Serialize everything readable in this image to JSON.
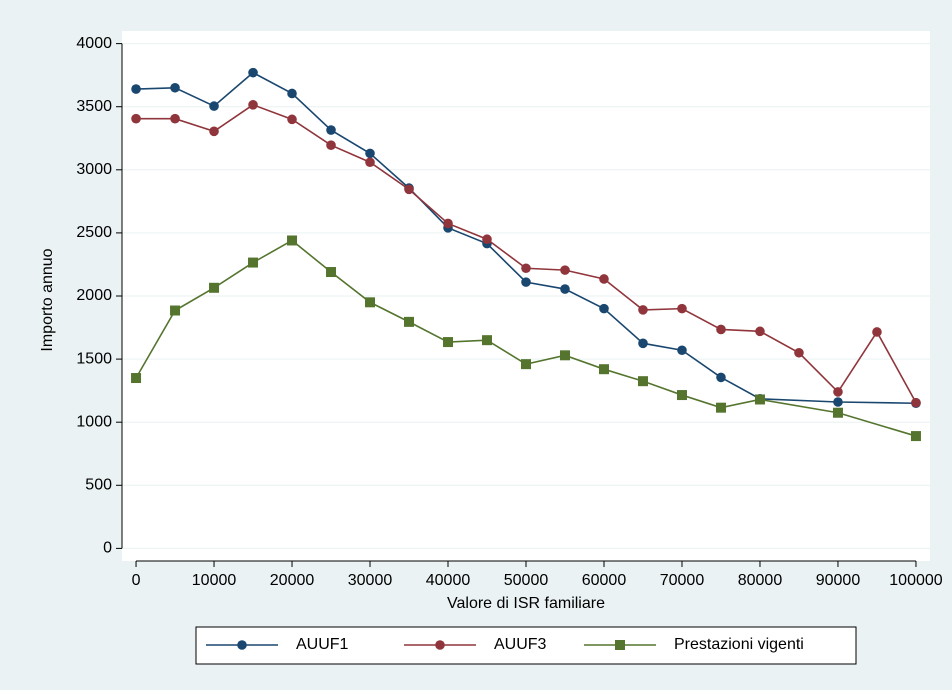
{
  "chart_data": {
    "type": "line",
    "y_label": "Importo annuo",
    "x_label": "Valore di ISR familiare",
    "xlim": [
      -1800,
      101800
    ],
    "ylim": [
      -100,
      4100
    ],
    "xticks": [
      0,
      10000,
      20000,
      30000,
      40000,
      50000,
      60000,
      70000,
      80000,
      90000,
      100000
    ],
    "yticks": [
      0,
      500,
      1000,
      1500,
      2000,
      2500,
      3000,
      3500,
      4000
    ],
    "grid": true,
    "legend": "bottom",
    "series": [
      {
        "name": "AUUF1",
        "color": "#1a476f",
        "marker": "circle",
        "x": [
          0,
          5000,
          10000,
          15000,
          20000,
          25000,
          30000,
          35000,
          40000,
          45000,
          50000,
          55000,
          60000,
          65000,
          70000,
          75000,
          80000,
          90000,
          100000
        ],
        "values": [
          3640,
          3650,
          3505,
          3770,
          3605,
          3315,
          3130,
          2855,
          2540,
          2415,
          2110,
          2055,
          1900,
          1625,
          1570,
          1355,
          1185,
          1160,
          1150
        ]
      },
      {
        "name": "AUUF3",
        "color": "#90353b",
        "marker": "circle",
        "x": [
          0,
          5000,
          10000,
          15000,
          20000,
          25000,
          30000,
          35000,
          40000,
          45000,
          50000,
          55000,
          60000,
          65000,
          70000,
          75000,
          80000,
          85000,
          90000,
          95000,
          100000
        ],
        "values": [
          3405,
          3405,
          3305,
          3515,
          3400,
          3195,
          3060,
          2845,
          2575,
          2450,
          2220,
          2205,
          2135,
          1890,
          1900,
          1735,
          1720,
          1550,
          1240,
          1715,
          1155
        ]
      },
      {
        "name": "Prestazioni vigenti",
        "color": "#55752f",
        "marker": "square",
        "x": [
          0,
          5000,
          10000,
          15000,
          20000,
          25000,
          30000,
          35000,
          40000,
          45000,
          50000,
          55000,
          60000,
          65000,
          70000,
          75000,
          80000,
          90000,
          100000
        ],
        "values": [
          1350,
          1885,
          2065,
          2265,
          2440,
          2190,
          1950,
          1795,
          1635,
          1650,
          1460,
          1530,
          1420,
          1325,
          1215,
          1115,
          1180,
          1075,
          890
        ]
      }
    ]
  }
}
